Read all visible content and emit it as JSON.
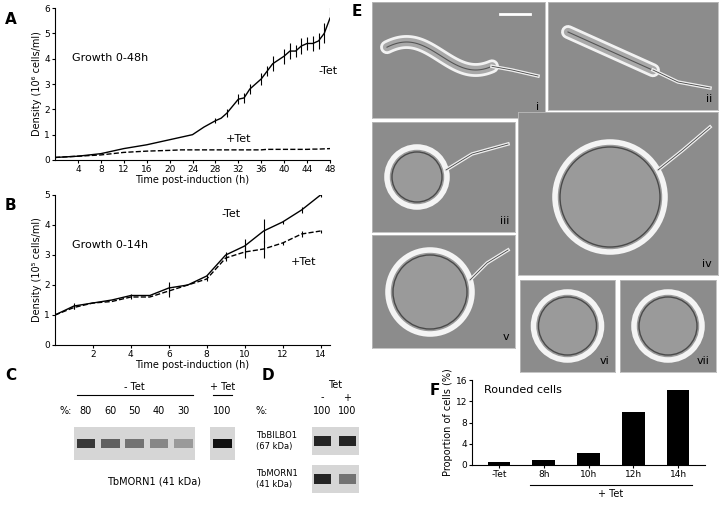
{
  "chart_data": [
    {
      "type": "line",
      "panel": "A",
      "annotations": [
        "Growth 0-48h"
      ],
      "xlabel": "Time post-induction (h)",
      "ylabel": "Density (10⁶ cells/ml)",
      "x": [
        0,
        4,
        8,
        12,
        16,
        20,
        22,
        24,
        26,
        28,
        29,
        30,
        32,
        33,
        34,
        36,
        37,
        38,
        40,
        41,
        42,
        43,
        44,
        45,
        46,
        47,
        48
      ],
      "series": [
        {
          "name": "-Tet",
          "color": "#000000",
          "line_style": "solid",
          "values": [
            0.1,
            0.15,
            0.25,
            0.45,
            0.6,
            0.8,
            0.9,
            1.0,
            1.3,
            1.55,
            1.65,
            1.85,
            2.4,
            2.45,
            2.8,
            3.2,
            3.5,
            3.8,
            4.1,
            4.3,
            4.3,
            4.5,
            4.6,
            4.6,
            4.7,
            5.0,
            5.6
          ],
          "errors": [
            0,
            0,
            0,
            0,
            0,
            0,
            0,
            0,
            0,
            0.1,
            0,
            0.15,
            0.2,
            0.2,
            0.2,
            0.25,
            0.2,
            0.3,
            0.3,
            0.3,
            0.25,
            0.3,
            0.25,
            0.3,
            0.3,
            0.4,
            0.5
          ]
        },
        {
          "name": "+Tet",
          "color": "#000000",
          "line_style": "dashed",
          "values": [
            0.1,
            0.15,
            0.2,
            0.3,
            0.35,
            0.38,
            0.4,
            0.4,
            0.4,
            0.4,
            0.4,
            0.4,
            0.4,
            0.4,
            0.4,
            0.4,
            0.42,
            0.42,
            0.42,
            0.42,
            0.42,
            0.42,
            0.42,
            0.43,
            0.43,
            0.44,
            0.45
          ],
          "errors": [
            0,
            0,
            0,
            0,
            0,
            0,
            0,
            0,
            0,
            0,
            0,
            0,
            0,
            0,
            0,
            0,
            0,
            0,
            0,
            0,
            0,
            0,
            0,
            0,
            0,
            0,
            0
          ]
        }
      ],
      "xlim": [
        0,
        48
      ],
      "xticks": [
        4,
        8,
        12,
        16,
        20,
        24,
        28,
        32,
        36,
        40,
        44,
        48
      ],
      "ylim": [
        0,
        6
      ],
      "yticks": [
        0,
        1,
        2,
        3,
        4,
        5,
        6
      ]
    },
    {
      "type": "line",
      "panel": "B",
      "annotations": [
        "Growth 0-14h"
      ],
      "xlabel": "Time post-induction (h)",
      "ylabel": "Density (10⁵ cells/ml)",
      "x": [
        0,
        1,
        2,
        3,
        4,
        5,
        6,
        7,
        8,
        9,
        10,
        11,
        12,
        13,
        14
      ],
      "series": [
        {
          "name": "-Tet",
          "color": "#000000",
          "line_style": "solid",
          "values": [
            1.0,
            1.3,
            1.4,
            1.5,
            1.65,
            1.65,
            1.9,
            2.0,
            2.3,
            3.0,
            3.3,
            3.8,
            4.1,
            4.5,
            5.0
          ],
          "errors": [
            0,
            0.1,
            0,
            0,
            0.05,
            0,
            0.2,
            0,
            0.05,
            0.1,
            0.25,
            0.4,
            0.05,
            0.1,
            0.05
          ]
        },
        {
          "name": "+Tet",
          "color": "#000000",
          "line_style": "dashed",
          "values": [
            1.0,
            1.25,
            1.4,
            1.45,
            1.6,
            1.6,
            1.8,
            2.0,
            2.2,
            2.9,
            3.1,
            3.2,
            3.4,
            3.7,
            3.8
          ],
          "errors": [
            0,
            0.05,
            0,
            0,
            0.05,
            0,
            0.2,
            0,
            0.05,
            0.1,
            0.2,
            0.3,
            0.05,
            0.1,
            0.05
          ]
        }
      ],
      "xlim": [
        0,
        14.5
      ],
      "xticks": [
        2,
        4,
        6,
        8,
        10,
        12,
        14
      ],
      "ylim": [
        0,
        5
      ],
      "yticks": [
        0,
        1,
        2,
        3,
        4,
        5
      ]
    },
    {
      "type": "bar",
      "panel": "F",
      "annotations": [
        "Rounded cells"
      ],
      "ylabel": "Proportion of cells (%)",
      "categories": [
        "-Tet",
        "8h",
        "10h",
        "12h",
        "14h"
      ],
      "values": [
        0.6,
        1.0,
        2.3,
        9.9,
        14.2
      ],
      "color": "#000000",
      "ylim": [
        0,
        16
      ],
      "yticks": [
        0,
        4,
        8,
        12,
        16
      ],
      "group": {
        "label": "+ Tet",
        "from": "8h",
        "to": "14h"
      }
    }
  ],
  "blots": [
    {
      "panel": "C",
      "row_label": "%:",
      "groups": [
        {
          "label": "- Tet",
          "percent": [
            80,
            60,
            50,
            40,
            30
          ]
        },
        {
          "label": "+ Tet",
          "percent": [
            100
          ]
        }
      ],
      "proteins": [
        "TbMORN1 (41 kDa)"
      ]
    },
    {
      "panel": "D",
      "header": "Tet",
      "row_label": "%:",
      "groups": [
        {
          "label": "-",
          "percent": [
            100
          ]
        },
        {
          "label": "+",
          "percent": [
            100
          ]
        }
      ],
      "proteins": [
        "TbBILBO1\n(67 kDa)",
        "TbMORN1\n(41 kDa)"
      ]
    }
  ],
  "micrographs": {
    "panel": "E",
    "labels": [
      "i",
      "ii",
      "iii",
      "iv",
      "v",
      "vi",
      "vii"
    ]
  }
}
